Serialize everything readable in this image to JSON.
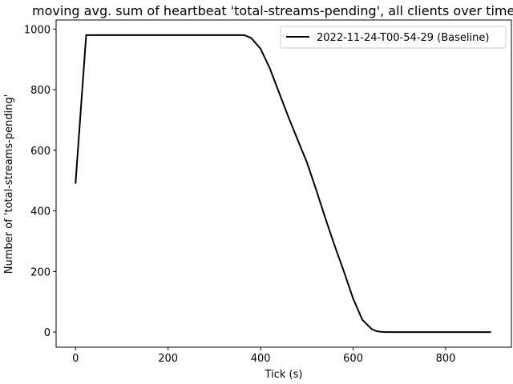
{
  "chart_data": {
    "type": "line",
    "title": "moving avg. sum of heartbeat 'total-streams-pending', all clients over time",
    "xlabel": "Tick (s)",
    "ylabel": "Number of 'total-streams-pending'",
    "xlim": [
      -42,
      942
    ],
    "ylim": [
      -50,
      1030
    ],
    "xticks": [
      0,
      200,
      400,
      600,
      800
    ],
    "yticks": [
      0,
      200,
      400,
      600,
      800,
      1000
    ],
    "grid": false,
    "legend_position": "top-right",
    "colors": {
      "series": "#000000",
      "axes": "#000000",
      "background": "#ffffff"
    },
    "series": [
      {
        "name": "2022-11-24-T00-54-29 (Baseline)",
        "x": [
          0,
          23,
          100,
          200,
          300,
          365,
          380,
          400,
          420,
          440,
          460,
          480,
          500,
          520,
          540,
          560,
          580,
          600,
          620,
          640,
          650,
          660,
          670,
          680,
          700,
          750,
          800,
          850,
          898
        ],
        "y": [
          490,
          980,
          980,
          980,
          980,
          980,
          970,
          935,
          870,
          790,
          710,
          635,
          560,
          470,
          375,
          285,
          200,
          110,
          40,
          10,
          3,
          1,
          0,
          0,
          0,
          0,
          0,
          0,
          0
        ]
      }
    ]
  }
}
